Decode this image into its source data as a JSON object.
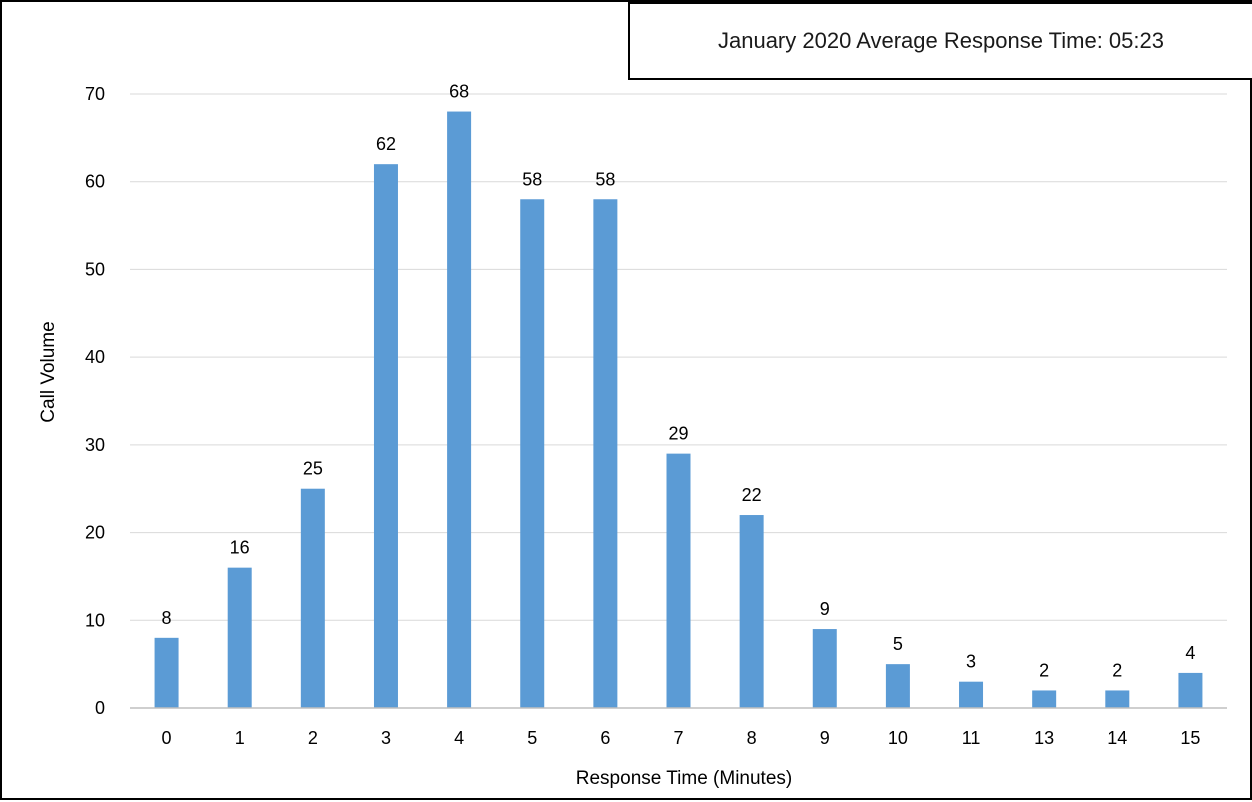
{
  "chart_data": {
    "type": "bar",
    "title": "January 2020 Average Response Time: 05:23",
    "xlabel": "Response Time (Minutes)",
    "ylabel": "Call Volume",
    "categories": [
      "0",
      "1",
      "2",
      "3",
      "4",
      "5",
      "6",
      "7",
      "8",
      "9",
      "10",
      "11",
      "13",
      "14",
      "15"
    ],
    "values": [
      8,
      16,
      25,
      62,
      68,
      58,
      58,
      29,
      22,
      9,
      5,
      3,
      2,
      2,
      4
    ],
    "ylim": [
      0,
      70
    ],
    "yticks": [
      0,
      10,
      20,
      30,
      40,
      50,
      60,
      70
    ],
    "grid": true,
    "data_labels": true,
    "colors": {
      "bar": "#5B9BD5",
      "grid": "#D9D9D9",
      "axis": "#BFBFBF",
      "text": "#000000"
    }
  }
}
